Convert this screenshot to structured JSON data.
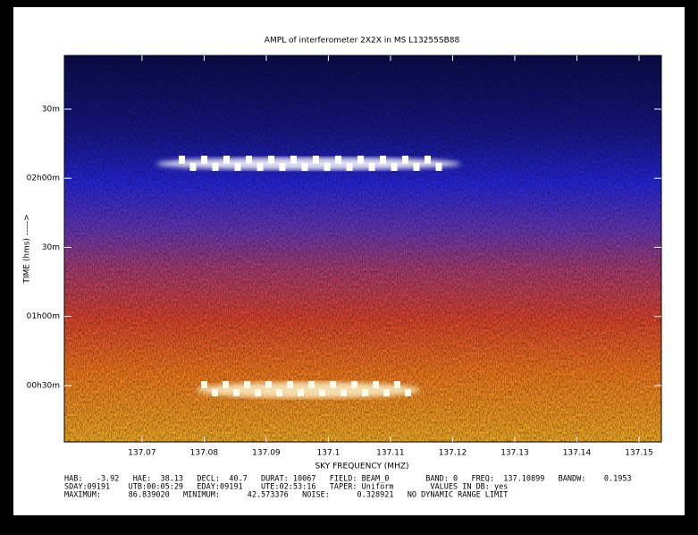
{
  "chart_data": {
    "type": "heatmap",
    "title": "AMPL of interferometer 2X2X in MS L13255SB88",
    "x_label": "SKY FREQUENCY (MHZ)",
    "y_label": "TIME (hms)  ----->",
    "xlim": [
      137.0575,
      137.1536
    ],
    "xticks": [
      137.07,
      137.08,
      137.09,
      137.1,
      137.11,
      137.12,
      137.13,
      137.14,
      137.15
    ],
    "ylim": [
      5.5,
      173.3
    ],
    "yticks": [
      {
        "value": 150,
        "label": "30m"
      },
      {
        "value": 120,
        "label": "02h00m"
      },
      {
        "value": 90,
        "label": "30m"
      },
      {
        "value": 60,
        "label": "01h00m"
      },
      {
        "value": 30,
        "label": "00h30m"
      }
    ],
    "footer": [
      "HAB:   -3.92   HAE:  38.13   DECL:  40.7   DURAT: 10067   FIELD: BEAM_0        BAND: 0   FREQ:  137.10899   BANDW:    0.1953",
      "SDAY:09191    UTB:00:05:29   EDAY:09191    UTE:02:53:16   TAPER: Uniform        VALUES IN DB: yes",
      "MAXIMUM:      86.839020   MINIMUM:      42.573376   NOISE:      0.328921   NO DYNAMIC RANGE LIMIT"
    ]
  }
}
